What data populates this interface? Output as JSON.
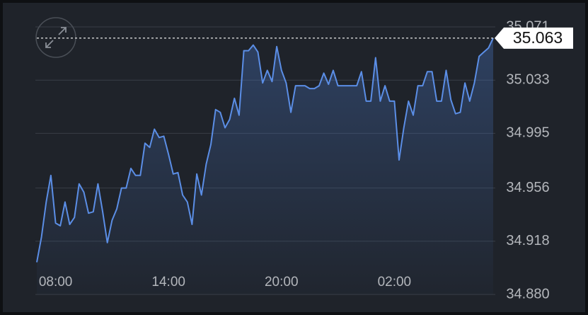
{
  "chart_data": {
    "type": "line",
    "color": "#5b8ee6",
    "grid": true,
    "x": [
      7,
      7.25,
      7.5,
      7.75,
      8,
      8.25,
      8.5,
      8.75,
      9,
      9.25,
      9.5,
      9.75,
      10,
      10.25,
      10.5,
      10.75,
      11,
      11.25,
      11.5,
      11.75,
      12,
      12.25,
      12.5,
      12.75,
      13,
      13.25,
      13.5,
      13.75,
      14,
      14.25,
      14.5,
      14.75,
      15,
      15.25,
      15.5,
      15.75,
      16,
      16.25,
      16.5,
      16.75,
      17,
      17.25,
      17.5,
      17.75,
      18,
      18.25,
      18.5,
      18.75,
      19,
      19.25,
      19.5,
      19.75,
      20,
      20.25,
      20.5,
      20.75,
      21,
      21.25,
      21.5,
      21.75,
      22,
      22.25,
      22.5,
      22.75,
      23,
      23.25,
      23.5,
      23.75,
      24,
      24.25,
      24.5,
      24.75,
      25,
      25.25,
      25.5,
      25.75,
      26,
      26.25,
      26.5,
      26.75,
      27,
      27.25,
      27.5,
      27.75,
      28,
      28.25,
      28.5,
      28.75,
      29,
      29.25,
      29.5,
      29.75,
      30,
      30.25,
      30.5,
      30.75,
      31,
      31.25
    ],
    "values": [
      34.903,
      34.921,
      34.946,
      34.965,
      34.931,
      34.929,
      34.946,
      34.93,
      34.935,
      34.959,
      34.953,
      34.938,
      34.939,
      34.959,
      34.939,
      34.917,
      34.933,
      34.941,
      34.956,
      34.956,
      34.97,
      34.965,
      34.965,
      34.988,
      34.985,
      34.998,
      34.992,
      34.993,
      34.98,
      34.966,
      34.967,
      34.951,
      34.946,
      34.93,
      34.966,
      34.951,
      34.973,
      34.987,
      35.012,
      35.01,
      34.999,
      35.005,
      35.02,
      35.008,
      35.054,
      35.054,
      35.058,
      35.053,
      35.031,
      35.04,
      35.032,
      35.057,
      35.04,
      35.031,
      35.01,
      35.029,
      35.029,
      35.029,
      35.027,
      35.027,
      35.029,
      35.038,
      35.03,
      35.04,
      35.029,
      35.029,
      35.029,
      35.029,
      35.029,
      35.039,
      35.018,
      35.018,
      35.049,
      35.018,
      35.029,
      35.018,
      35.018,
      34.976,
      34.999,
      35.018,
      35.008,
      35.029,
      35.029,
      35.039,
      35.039,
      35.018,
      35.018,
      35.04,
      35.019,
      35.009,
      35.01,
      35.031,
      35.018,
      35.031,
      35.05,
      35.053,
      35.056,
      35.063
    ],
    "xlim": [
      7,
      31.25
    ],
    "xticks": [
      {
        "value": 8,
        "label": "08:00"
      },
      {
        "value": 14,
        "label": "14:00"
      },
      {
        "value": 20,
        "label": "20:00"
      },
      {
        "value": 26,
        "label": "02:00"
      }
    ],
    "ylim": [
      34.88,
      35.071
    ],
    "yticks": [
      35.071,
      35.033,
      34.995,
      34.956,
      34.918,
      {
        "value": 34.88,
        "label": "34.880"
      }
    ]
  }
}
